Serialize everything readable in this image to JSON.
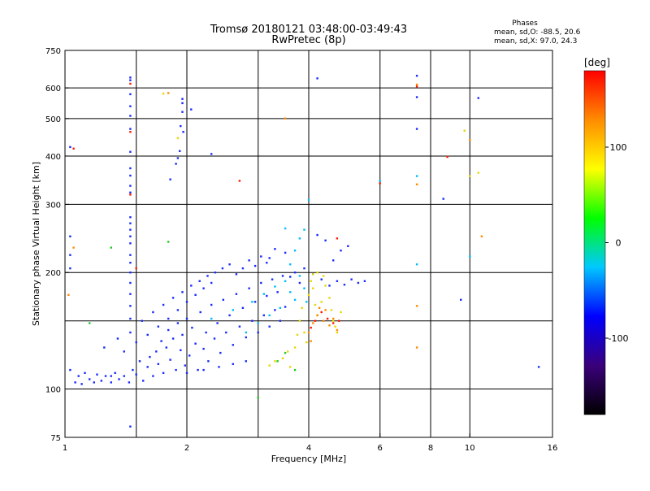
{
  "header": {
    "title_line1": "Tromsø 20180121 03:48:00-03:49:43",
    "title_line2": "RwPretec (8p)"
  },
  "stats": {
    "heading": "Phases",
    "o_line": "mean, sd,O: -88.5, 20.6",
    "x_line": "mean, sd,X:  97.0, 24.3"
  },
  "chart_data": {
    "type": "scatter",
    "title": "Tromsø 20180121 03:48:00-03:49:43",
    "subtitle": "RwPretec (8p)",
    "xlabel": "Frequency [MHz]",
    "ylabel": "Stationary phase Virtual Height [km]",
    "x_scale": "log",
    "y_scale": "log",
    "xlim": [
      1,
      16
    ],
    "ylim": [
      75,
      750
    ],
    "x_ticks": [
      1,
      2,
      4,
      6,
      8,
      10,
      16
    ],
    "y_ticks": [
      75,
      100,
      200,
      300,
      400,
      500,
      600,
      750
    ],
    "grid_x": [
      1.5,
      2,
      3,
      4,
      6,
      8,
      10
    ],
    "grid_y": [
      100,
      150,
      200,
      300,
      400,
      500,
      600
    ],
    "colorbar": {
      "label": "[deg]",
      "range": [
        -180,
        180
      ],
      "ticks": [
        100,
        0,
        -100
      ],
      "colors": [
        "#000000",
        "#3a007a",
        "#0000ff",
        "#00c8ff",
        "#00ff00",
        "#ffff00",
        "#ff8c00",
        "#ff0000"
      ]
    },
    "series": [
      {
        "color_group": "blue",
        "color": "#1a2cff",
        "points": [
          [
            1.03,
            112
          ],
          [
            1.06,
            104
          ],
          [
            1.08,
            108
          ],
          [
            1.1,
            103
          ],
          [
            1.12,
            110
          ],
          [
            1.15,
            106
          ],
          [
            1.18,
            104
          ],
          [
            1.2,
            109
          ],
          [
            1.23,
            105
          ],
          [
            1.26,
            108
          ],
          [
            1.3,
            104
          ],
          [
            1.33,
            110
          ],
          [
            1.36,
            106
          ],
          [
            1.4,
            108
          ],
          [
            1.44,
            104
          ],
          [
            1.47,
            112
          ],
          [
            1.5,
            109
          ],
          [
            1.53,
            118
          ],
          [
            1.56,
            105
          ],
          [
            1.6,
            114
          ],
          [
            1.62,
            121
          ],
          [
            1.65,
            108
          ],
          [
            1.68,
            125
          ],
          [
            1.7,
            116
          ],
          [
            1.73,
            133
          ],
          [
            1.75,
            110
          ],
          [
            1.78,
            128
          ],
          [
            1.8,
            142
          ],
          [
            1.82,
            119
          ],
          [
            1.85,
            135
          ],
          [
            1.88,
            112
          ],
          [
            1.9,
            148
          ],
          [
            1.93,
            126
          ],
          [
            1.95,
            138
          ],
          [
            1.98,
            115
          ],
          [
            2.0,
            152
          ],
          [
            2.03,
            122
          ],
          [
            2.06,
            144
          ],
          [
            2.1,
            131
          ],
          [
            2.13,
            112
          ],
          [
            2.16,
            158
          ],
          [
            2.2,
            127
          ],
          [
            2.23,
            140
          ],
          [
            2.26,
            118
          ],
          [
            2.3,
            165
          ],
          [
            2.34,
            135
          ],
          [
            2.38,
            148
          ],
          [
            2.42,
            124
          ],
          [
            2.46,
            170
          ],
          [
            2.5,
            140
          ],
          [
            2.55,
            155
          ],
          [
            2.6,
            130
          ],
          [
            2.65,
            176
          ],
          [
            2.7,
            145
          ],
          [
            2.75,
            162
          ],
          [
            2.8,
            136
          ],
          [
            2.85,
            182
          ],
          [
            2.9,
            150
          ],
          [
            2.95,
            168
          ],
          [
            3.0,
            140
          ],
          [
            3.05,
            188
          ],
          [
            3.1,
            155
          ],
          [
            3.15,
            174
          ],
          [
            3.2,
            145
          ],
          [
            3.25,
            192
          ],
          [
            3.3,
            160
          ],
          [
            3.35,
            178
          ],
          [
            3.4,
            150
          ],
          [
            3.45,
            196
          ],
          [
            3.5,
            163
          ],
          [
            1.25,
            128
          ],
          [
            1.35,
            135
          ],
          [
            1.45,
            140
          ],
          [
            1.55,
            150
          ],
          [
            1.65,
            158
          ],
          [
            1.75,
            165
          ],
          [
            1.85,
            172
          ],
          [
            1.95,
            178
          ],
          [
            2.05,
            185
          ],
          [
            2.15,
            190
          ],
          [
            2.25,
            196
          ],
          [
            2.35,
            200
          ],
          [
            2.45,
            205
          ],
          [
            2.55,
            210
          ],
          [
            2.65,
            198
          ],
          [
            2.75,
            205
          ],
          [
            2.85,
            215
          ],
          [
            2.95,
            208
          ],
          [
            3.05,
            220
          ],
          [
            3.15,
            212
          ],
          [
            1.4,
            125
          ],
          [
            1.5,
            132
          ],
          [
            1.6,
            138
          ],
          [
            1.7,
            145
          ],
          [
            1.8,
            152
          ],
          [
            1.9,
            160
          ],
          [
            2.0,
            168
          ],
          [
            2.1,
            175
          ],
          [
            2.2,
            182
          ],
          [
            2.3,
            188
          ],
          [
            3.6,
            195
          ],
          [
            3.7,
            200
          ],
          [
            3.8,
            188
          ],
          [
            3.9,
            205
          ],
          [
            4.1,
            198
          ],
          [
            4.3,
            192
          ],
          [
            4.5,
            185
          ],
          [
            4.7,
            190
          ],
          [
            4.9,
            186
          ],
          [
            5.1,
            192
          ],
          [
            5.3,
            188
          ],
          [
            5.5,
            190
          ],
          [
            4.6,
            215
          ],
          [
            4.8,
            228
          ],
          [
            5.0,
            234
          ],
          [
            4.2,
            250
          ],
          [
            4.4,
            242
          ],
          [
            3.3,
            230
          ],
          [
            3.5,
            225
          ],
          [
            3.2,
            218
          ],
          [
            1.45,
            410
          ],
          [
            1.45,
            372
          ],
          [
            1.45,
            356
          ],
          [
            1.45,
            335
          ],
          [
            1.45,
            322
          ],
          [
            1.45,
            278
          ],
          [
            1.45,
            268
          ],
          [
            1.45,
            258
          ],
          [
            1.45,
            248
          ],
          [
            1.45,
            638
          ],
          [
            1.45,
            628
          ],
          [
            1.45,
            578
          ],
          [
            1.45,
            538
          ],
          [
            1.45,
            508
          ],
          [
            1.45,
            470
          ],
          [
            1.45,
            238
          ],
          [
            1.45,
            222
          ],
          [
            1.45,
            212
          ],
          [
            1.45,
            200
          ],
          [
            1.45,
            188
          ],
          [
            1.45,
            176
          ],
          [
            1.45,
            164
          ],
          [
            1.45,
            152
          ],
          [
            1.95,
            562
          ],
          [
            1.95,
            548
          ],
          [
            1.95,
            520
          ],
          [
            1.93,
            478
          ],
          [
            1.96,
            462
          ],
          [
            1.92,
            412
          ],
          [
            1.9,
            395
          ],
          [
            1.88,
            382
          ],
          [
            2.05,
            528
          ],
          [
            2.3,
            405
          ],
          [
            1.03,
            422
          ],
          [
            1.03,
            248
          ],
          [
            1.03,
            222
          ],
          [
            1.03,
            205
          ],
          [
            1.82,
            348
          ],
          [
            4.2,
            635
          ],
          [
            7.4,
            645
          ],
          [
            7.4,
            568
          ],
          [
            7.4,
            470
          ],
          [
            10.5,
            565
          ],
          [
            9.5,
            170
          ],
          [
            8.6,
            310
          ],
          [
            14.8,
            114
          ],
          [
            1.45,
            80
          ],
          [
            1.3,
            108
          ],
          [
            2.0,
            110
          ],
          [
            2.2,
            112
          ],
          [
            2.4,
            114
          ],
          [
            2.6,
            116
          ],
          [
            2.8,
            118
          ]
        ]
      },
      {
        "color_group": "cyan",
        "color": "#00bcff",
        "points": [
          [
            2.3,
            152
          ],
          [
            2.6,
            160
          ],
          [
            2.9,
            168
          ],
          [
            3.1,
            176
          ],
          [
            3.3,
            184
          ],
          [
            3.5,
            190
          ],
          [
            3.6,
            178
          ],
          [
            3.7,
            170
          ],
          [
            3.4,
            162
          ],
          [
            3.2,
            155
          ],
          [
            3.0,
            148
          ],
          [
            2.8,
            140
          ],
          [
            3.6,
            210
          ],
          [
            3.7,
            228
          ],
          [
            3.8,
            245
          ],
          [
            3.5,
            260
          ],
          [
            3.9,
            258
          ],
          [
            4.0,
            308
          ],
          [
            6.0,
            345
          ],
          [
            7.4,
            355
          ],
          [
            7.4,
            210
          ],
          [
            10.0,
            220
          ],
          [
            3.8,
            196
          ],
          [
            3.9,
            182
          ],
          [
            3.95,
            168
          ]
        ]
      },
      {
        "color_group": "green",
        "color": "#22c81e",
        "points": [
          [
            1.15,
            148
          ],
          [
            1.3,
            232
          ],
          [
            1.8,
            240
          ],
          [
            3.0,
            95
          ],
          [
            3.35,
            118
          ],
          [
            3.5,
            124
          ],
          [
            3.7,
            112
          ]
        ]
      },
      {
        "color_group": "yellow",
        "color": "#e6d800",
        "points": [
          [
            3.2,
            115
          ],
          [
            3.3,
            118
          ],
          [
            3.45,
            120
          ],
          [
            3.55,
            125
          ],
          [
            3.6,
            114
          ],
          [
            3.7,
            128
          ],
          [
            3.75,
            138
          ],
          [
            3.8,
            150
          ],
          [
            3.85,
            162
          ],
          [
            3.9,
            140
          ],
          [
            3.95,
            132
          ],
          [
            4.0,
            175
          ],
          [
            4.05,
            190
          ],
          [
            4.1,
            182
          ],
          [
            4.15,
            165
          ],
          [
            4.2,
            155
          ],
          [
            4.3,
            168
          ],
          [
            4.35,
            196
          ],
          [
            4.4,
            185
          ],
          [
            4.5,
            172
          ],
          [
            4.55,
            160
          ],
          [
            4.6,
            150
          ],
          [
            4.65,
            145
          ],
          [
            4.7,
            140
          ],
          [
            4.8,
            158
          ],
          [
            4.1,
            198
          ],
          [
            4.2,
            200
          ],
          [
            1.75,
            580
          ],
          [
            1.9,
            445
          ],
          [
            9.7,
            465
          ],
          [
            10.0,
            355
          ],
          [
            10.5,
            362
          ]
        ]
      },
      {
        "color_group": "orange",
        "color": "#ff8a00",
        "points": [
          [
            4.0,
            140
          ],
          [
            4.1,
            148
          ],
          [
            4.2,
            155
          ],
          [
            4.35,
            150
          ],
          [
            4.5,
            146
          ],
          [
            4.6,
            152
          ],
          [
            4.7,
            142
          ],
          [
            4.4,
            160
          ],
          [
            4.25,
            162
          ],
          [
            4.05,
            133
          ],
          [
            7.4,
            612
          ],
          [
            7.4,
            338
          ],
          [
            7.4,
            128
          ],
          [
            7.4,
            164
          ],
          [
            10.0,
            440
          ],
          [
            10.7,
            248
          ],
          [
            1.02,
            175
          ],
          [
            1.05,
            232
          ],
          [
            3.5,
            500
          ],
          [
            1.8,
            582
          ]
        ]
      },
      {
        "color_group": "red",
        "color": "#ff1a00",
        "points": [
          [
            4.05,
            144
          ],
          [
            4.15,
            150
          ],
          [
            4.3,
            158
          ],
          [
            4.45,
            152
          ],
          [
            4.6,
            148
          ],
          [
            4.75,
            150
          ],
          [
            2.7,
            345
          ],
          [
            6.0,
            340
          ],
          [
            4.7,
            245
          ],
          [
            1.45,
            615
          ],
          [
            1.45,
            462
          ],
          [
            1.5,
            205
          ],
          [
            1.45,
            318
          ],
          [
            8.8,
            398
          ],
          [
            7.4,
            605
          ],
          [
            1.05,
            418
          ]
        ]
      }
    ]
  }
}
